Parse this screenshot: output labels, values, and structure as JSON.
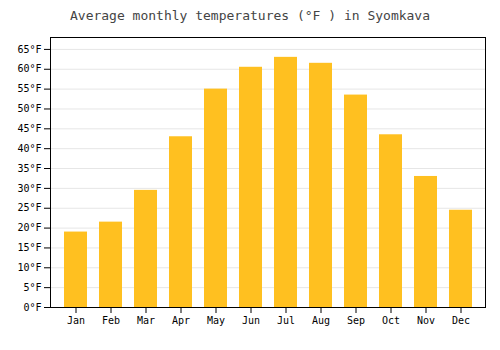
{
  "chart_data": {
    "type": "bar",
    "title": "Average monthly temperatures (°F ) in Syomkava",
    "categories": [
      "Jan",
      "Feb",
      "Mar",
      "Apr",
      "May",
      "Jun",
      "Jul",
      "Aug",
      "Sep",
      "Oct",
      "Nov",
      "Dec"
    ],
    "values": [
      19,
      21.5,
      29.5,
      43,
      55,
      60.5,
      63,
      61.5,
      53.5,
      43.5,
      33,
      24.5
    ],
    "color": "#FFC020",
    "ylim": [
      0,
      68
    ],
    "yticks": [
      {
        "value": 0,
        "label": "0°F"
      },
      {
        "value": 5,
        "label": "5°F"
      },
      {
        "value": 10,
        "label": "10°F"
      },
      {
        "value": 15,
        "label": "15°F"
      },
      {
        "value": 20,
        "label": "20°F"
      },
      {
        "value": 25,
        "label": "25°F"
      },
      {
        "value": 30,
        "label": "30°F"
      },
      {
        "value": 35,
        "label": "35°F"
      },
      {
        "value": 40,
        "label": "40°F"
      },
      {
        "value": 45,
        "label": "45°F"
      },
      {
        "value": 50,
        "label": "50°F"
      },
      {
        "value": 55,
        "label": "55°F"
      },
      {
        "value": 60,
        "label": "60°F"
      },
      {
        "value": 65,
        "label": "65°F"
      }
    ],
    "grid": true
  }
}
